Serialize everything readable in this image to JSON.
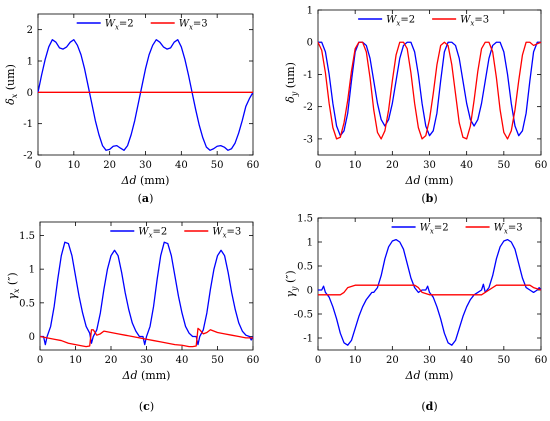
{
  "colors": {
    "series1": "#0000ff",
    "series2": "#ff0000"
  },
  "legend": [
    {
      "label": "W",
      "sub": "x",
      "suffix": "=2"
    },
    {
      "label": "W",
      "sub": "x",
      "suffix": "=3"
    }
  ],
  "chart_data": [
    {
      "panel": "a",
      "type": "line",
      "caption_open": "(",
      "caption_letter": "a",
      "caption_close": ")",
      "xlabel": "Δd",
      "xlabel_unit": " (mm)",
      "ylabel": "δ",
      "ylabel_sub": "x",
      "ylabel_unit": " (um)",
      "xlim": [
        0,
        60
      ],
      "ylim": [
        -2,
        2.5
      ],
      "xticks": [
        0,
        10,
        20,
        30,
        40,
        50,
        60
      ],
      "yticks": [
        -2,
        -1,
        0,
        1,
        2
      ],
      "legend_placement": "top-center",
      "series": [
        {
          "legend_index": 0,
          "color_key": "series1",
          "x": [
            0,
            1,
            2,
            3,
            4,
            5,
            6,
            7,
            8,
            9,
            10,
            11,
            12,
            13,
            14,
            15,
            16,
            17,
            18,
            19,
            20,
            21,
            22,
            23,
            24,
            25,
            26,
            27,
            28,
            29,
            30,
            31,
            32,
            33,
            34,
            35,
            36,
            37,
            38,
            39,
            40,
            41,
            42,
            43,
            44,
            45,
            46,
            47,
            48,
            49,
            50,
            51,
            52,
            53,
            54,
            55,
            56,
            57,
            58,
            59,
            60
          ],
          "y": [
            0,
            0.55,
            1.05,
            1.45,
            1.68,
            1.6,
            1.42,
            1.38,
            1.45,
            1.6,
            1.68,
            1.5,
            1.2,
            0.75,
            0.2,
            -0.35,
            -0.9,
            -1.35,
            -1.7,
            -1.85,
            -1.82,
            -1.72,
            -1.7,
            -1.78,
            -1.85,
            -1.7,
            -1.35,
            -0.9,
            -0.35,
            0.2,
            0.75,
            1.2,
            1.5,
            1.68,
            1.6,
            1.45,
            1.38,
            1.42,
            1.6,
            1.68,
            1.45,
            1.05,
            0.55,
            0,
            -0.55,
            -1.05,
            -1.45,
            -1.75,
            -1.85,
            -1.8,
            -1.72,
            -1.7,
            -1.75,
            -1.85,
            -1.8,
            -1.62,
            -1.3,
            -0.9,
            -0.45,
            -0.2,
            0
          ]
        },
        {
          "legend_index": 1,
          "color_key": "series2",
          "x": [
            0,
            60
          ],
          "y": [
            0,
            0
          ]
        }
      ]
    },
    {
      "panel": "b",
      "type": "line",
      "caption_open": "(",
      "caption_letter": "b",
      "caption_close": ")",
      "xlabel": "Δd",
      "xlabel_unit": " (mm)",
      "ylabel": "δ",
      "ylabel_sub": "y",
      "ylabel_unit": " (um)",
      "xlim": [
        0,
        60
      ],
      "ylim": [
        -3.5,
        1
      ],
      "xticks": [
        0,
        10,
        20,
        30,
        40,
        50,
        60
      ],
      "yticks": [
        -3,
        -2,
        -1,
        0,
        1
      ],
      "legend_placement": "top-center",
      "series": [
        {
          "legend_index": 0,
          "color_key": "series1",
          "x": [
            0,
            1,
            2,
            3,
            4,
            5,
            6,
            7,
            8,
            9,
            10,
            11,
            12,
            13,
            14,
            15,
            16,
            17,
            18,
            19,
            20,
            21,
            22,
            23,
            24,
            25,
            26,
            27,
            28,
            29,
            30,
            31,
            32,
            33,
            34,
            35,
            36,
            37,
            38,
            39,
            40,
            41,
            42,
            43,
            44,
            45,
            46,
            47,
            48,
            49,
            50,
            51,
            52,
            53,
            54,
            55,
            56,
            57,
            58,
            59,
            60
          ],
          "y": [
            0,
            0,
            -0.3,
            -1.0,
            -1.9,
            -2.6,
            -2.9,
            -2.75,
            -2.2,
            -1.2,
            -0.3,
            0,
            0,
            -0.1,
            -0.5,
            -1.2,
            -1.9,
            -2.4,
            -2.6,
            -2.4,
            -1.9,
            -1.2,
            -0.5,
            -0.1,
            0,
            0,
            -0.3,
            -1.0,
            -1.9,
            -2.6,
            -2.9,
            -2.75,
            -2.2,
            -1.2,
            -0.3,
            0,
            0,
            -0.1,
            -0.5,
            -1.2,
            -1.9,
            -2.4,
            -2.6,
            -2.4,
            -1.9,
            -1.2,
            -0.5,
            -0.1,
            0,
            0,
            -0.3,
            -1.0,
            -1.9,
            -2.6,
            -2.9,
            -2.75,
            -2.2,
            -1.2,
            -0.3,
            0,
            0
          ]
        },
        {
          "legend_index": 1,
          "color_key": "series2",
          "x": [
            0,
            1,
            2,
            3,
            4,
            5,
            6,
            7,
            8,
            9,
            10,
            11,
            12,
            13,
            14,
            15,
            16,
            17,
            18,
            19,
            20,
            21,
            22,
            23,
            24,
            25,
            26,
            27,
            28,
            29,
            30,
            31,
            32,
            33,
            34,
            35,
            36,
            37,
            38,
            39,
            40,
            41,
            42,
            43,
            44,
            45,
            46,
            47,
            48,
            49,
            50,
            51,
            52,
            53,
            54,
            55,
            56,
            57,
            58,
            59,
            60
          ],
          "y": [
            0,
            -0.25,
            -0.95,
            -1.9,
            -2.65,
            -3.0,
            -2.95,
            -2.5,
            -1.8,
            -0.9,
            -0.2,
            0,
            0,
            -0.3,
            -1.1,
            -2.1,
            -2.8,
            -3.0,
            -2.75,
            -2.1,
            -1.2,
            -0.4,
            0,
            0,
            -0.2,
            -0.95,
            -1.9,
            -2.65,
            -3.0,
            -2.9,
            -2.4,
            -1.6,
            -0.7,
            -0.1,
            0,
            -0.1,
            -0.7,
            -1.6,
            -2.5,
            -2.95,
            -3.0,
            -2.6,
            -1.8,
            -0.9,
            -0.2,
            0,
            0,
            -0.3,
            -1.1,
            -2.1,
            -2.8,
            -3.0,
            -2.75,
            -2.1,
            -1.2,
            -0.4,
            0,
            0,
            -0.1,
            -0.05,
            0
          ]
        }
      ]
    },
    {
      "panel": "c",
      "type": "line",
      "caption_open": "(",
      "caption_letter": "c",
      "caption_close": ")",
      "xlabel": "Δd",
      "xlabel_unit": " (mm)",
      "ylabel": "γ",
      "ylabel_sub": "x",
      "ylabel_unit": " (″)",
      "xlim": [
        0,
        60
      ],
      "ylim": [
        -0.2,
        1.7
      ],
      "xticks": [
        0,
        10,
        20,
        30,
        40,
        50,
        60
      ],
      "yticks": [
        0,
        0.5,
        1,
        1.5
      ],
      "legend_placement": "top-right",
      "series": [
        {
          "legend_index": 0,
          "color_key": "series1",
          "x": [
            0,
            1,
            1.5,
            2,
            3,
            4,
            5,
            6,
            7,
            8,
            9,
            10,
            11,
            12,
            13,
            14,
            14.5,
            15,
            16,
            17,
            18,
            19,
            20,
            21,
            22,
            23,
            24,
            25,
            26,
            27,
            28,
            29,
            29.5,
            30,
            31,
            32,
            33,
            34,
            35,
            36,
            37,
            38,
            39,
            40,
            41,
            42,
            43,
            44,
            44.5,
            45,
            46,
            47,
            48,
            49,
            50,
            51,
            52,
            53,
            54,
            55,
            56,
            57,
            58,
            59,
            59.5,
            60
          ],
          "y": [
            0,
            0,
            -0.12,
            0,
            0.15,
            0.45,
            0.85,
            1.2,
            1.4,
            1.38,
            1.2,
            0.9,
            0.6,
            0.35,
            0.15,
            0.05,
            -0.1,
            0,
            0.1,
            0.35,
            0.7,
            1.0,
            1.2,
            1.28,
            1.2,
            0.95,
            0.65,
            0.4,
            0.2,
            0.08,
            0,
            0,
            -0.12,
            0,
            0.15,
            0.45,
            0.85,
            1.2,
            1.4,
            1.38,
            1.2,
            0.9,
            0.6,
            0.35,
            0.15,
            0.05,
            0,
            0,
            -0.12,
            0,
            0.1,
            0.35,
            0.7,
            1.0,
            1.2,
            1.28,
            1.2,
            0.95,
            0.65,
            0.4,
            0.2,
            0.08,
            0.02,
            0,
            -0.05,
            0
          ]
        },
        {
          "legend_index": 1,
          "color_key": "series2",
          "x": [
            0,
            2,
            4,
            6,
            8,
            10,
            12,
            13,
            14,
            14.5,
            15,
            16,
            17,
            18,
            20,
            22,
            24,
            26,
            28,
            30,
            32,
            34,
            36,
            38,
            40,
            42,
            43,
            44,
            44.5,
            45,
            46,
            47,
            48,
            50,
            52,
            54,
            56,
            58,
            60
          ],
          "y": [
            0,
            -0.02,
            -0.04,
            -0.06,
            -0.1,
            -0.12,
            -0.14,
            -0.15,
            -0.14,
            0.1,
            0.1,
            0.02,
            0.04,
            0.08,
            0.06,
            0.04,
            0.02,
            0,
            -0.02,
            -0.04,
            -0.06,
            -0.08,
            -0.1,
            -0.12,
            -0.13,
            -0.15,
            -0.15,
            -0.14,
            0.12,
            0.1,
            0.04,
            0.06,
            0.1,
            0.06,
            0.04,
            0.02,
            0,
            -0.02,
            -0.02
          ]
        }
      ]
    },
    {
      "panel": "d",
      "type": "line",
      "caption_open": "(",
      "caption_letter": "d",
      "caption_close": ")",
      "xlabel": "Δd",
      "xlabel_unit": " (mm)",
      "ylabel": "γ",
      "ylabel_sub": "y",
      "ylabel_unit": " (″)",
      "xlim": [
        0,
        60
      ],
      "ylim": [
        -1.25,
        1.5
      ],
      "xticks": [
        0,
        10,
        20,
        30,
        40,
        50,
        60
      ],
      "yticks": [
        -1,
        -0.5,
        0,
        0.5,
        1,
        1.5
      ],
      "legend_placement": "top-right",
      "series": [
        {
          "legend_index": 0,
          "color_key": "series1",
          "x": [
            0,
            1,
            1.5,
            2,
            3,
            4,
            5,
            6,
            7,
            8,
            9,
            10,
            11,
            12,
            13,
            14,
            14.5,
            15,
            16,
            17,
            18,
            19,
            20,
            21,
            22,
            23,
            24,
            25,
            26,
            27,
            28,
            29,
            29.5,
            30,
            31,
            32,
            33,
            34,
            35,
            36,
            37,
            38,
            39,
            40,
            41,
            42,
            43,
            44,
            44.5,
            45,
            46,
            47,
            48,
            49,
            50,
            51,
            52,
            53,
            54,
            55,
            56,
            57,
            58,
            59,
            59.5,
            60
          ],
          "y": [
            0,
            0,
            0.08,
            -0.05,
            -0.15,
            -0.35,
            -0.6,
            -0.9,
            -1.1,
            -1.15,
            -1.05,
            -0.8,
            -0.55,
            -0.35,
            -0.2,
            -0.1,
            -0.05,
            -0.05,
            0.05,
            0.3,
            0.65,
            0.9,
            1.02,
            1.05,
            1.0,
            0.85,
            0.55,
            0.25,
            0.05,
            -0.05,
            0,
            0,
            0.08,
            -0.05,
            -0.15,
            -0.35,
            -0.6,
            -0.9,
            -1.1,
            -1.15,
            -1.05,
            -0.8,
            -0.55,
            -0.35,
            -0.2,
            -0.1,
            -0.05,
            0,
            0.12,
            -0.05,
            0.05,
            0.3,
            0.65,
            0.9,
            1.02,
            1.05,
            1.0,
            0.85,
            0.55,
            0.25,
            0.05,
            0,
            -0.05,
            0,
            0.05,
            0
          ]
        },
        {
          "legend_index": 1,
          "color_key": "series2",
          "x": [
            0,
            2,
            4,
            6,
            7,
            8,
            10,
            12,
            14,
            16,
            18,
            20,
            22,
            24,
            26,
            27,
            28,
            30,
            32,
            34,
            36,
            37,
            38,
            40,
            42,
            44,
            46,
            48,
            50,
            52,
            54,
            56,
            57,
            58,
            60
          ],
          "y": [
            -0.1,
            -0.1,
            -0.1,
            -0.1,
            -0.05,
            0.05,
            0.1,
            0.1,
            0.1,
            0.1,
            0.1,
            0.1,
            0.1,
            0.1,
            0.1,
            0.05,
            -0.05,
            -0.1,
            -0.1,
            -0.1,
            -0.1,
            -0.1,
            -0.1,
            -0.1,
            -0.1,
            -0.1,
            0,
            0.1,
            0.1,
            0.1,
            0.1,
            0.1,
            0.1,
            0.05,
            0
          ]
        }
      ]
    }
  ]
}
